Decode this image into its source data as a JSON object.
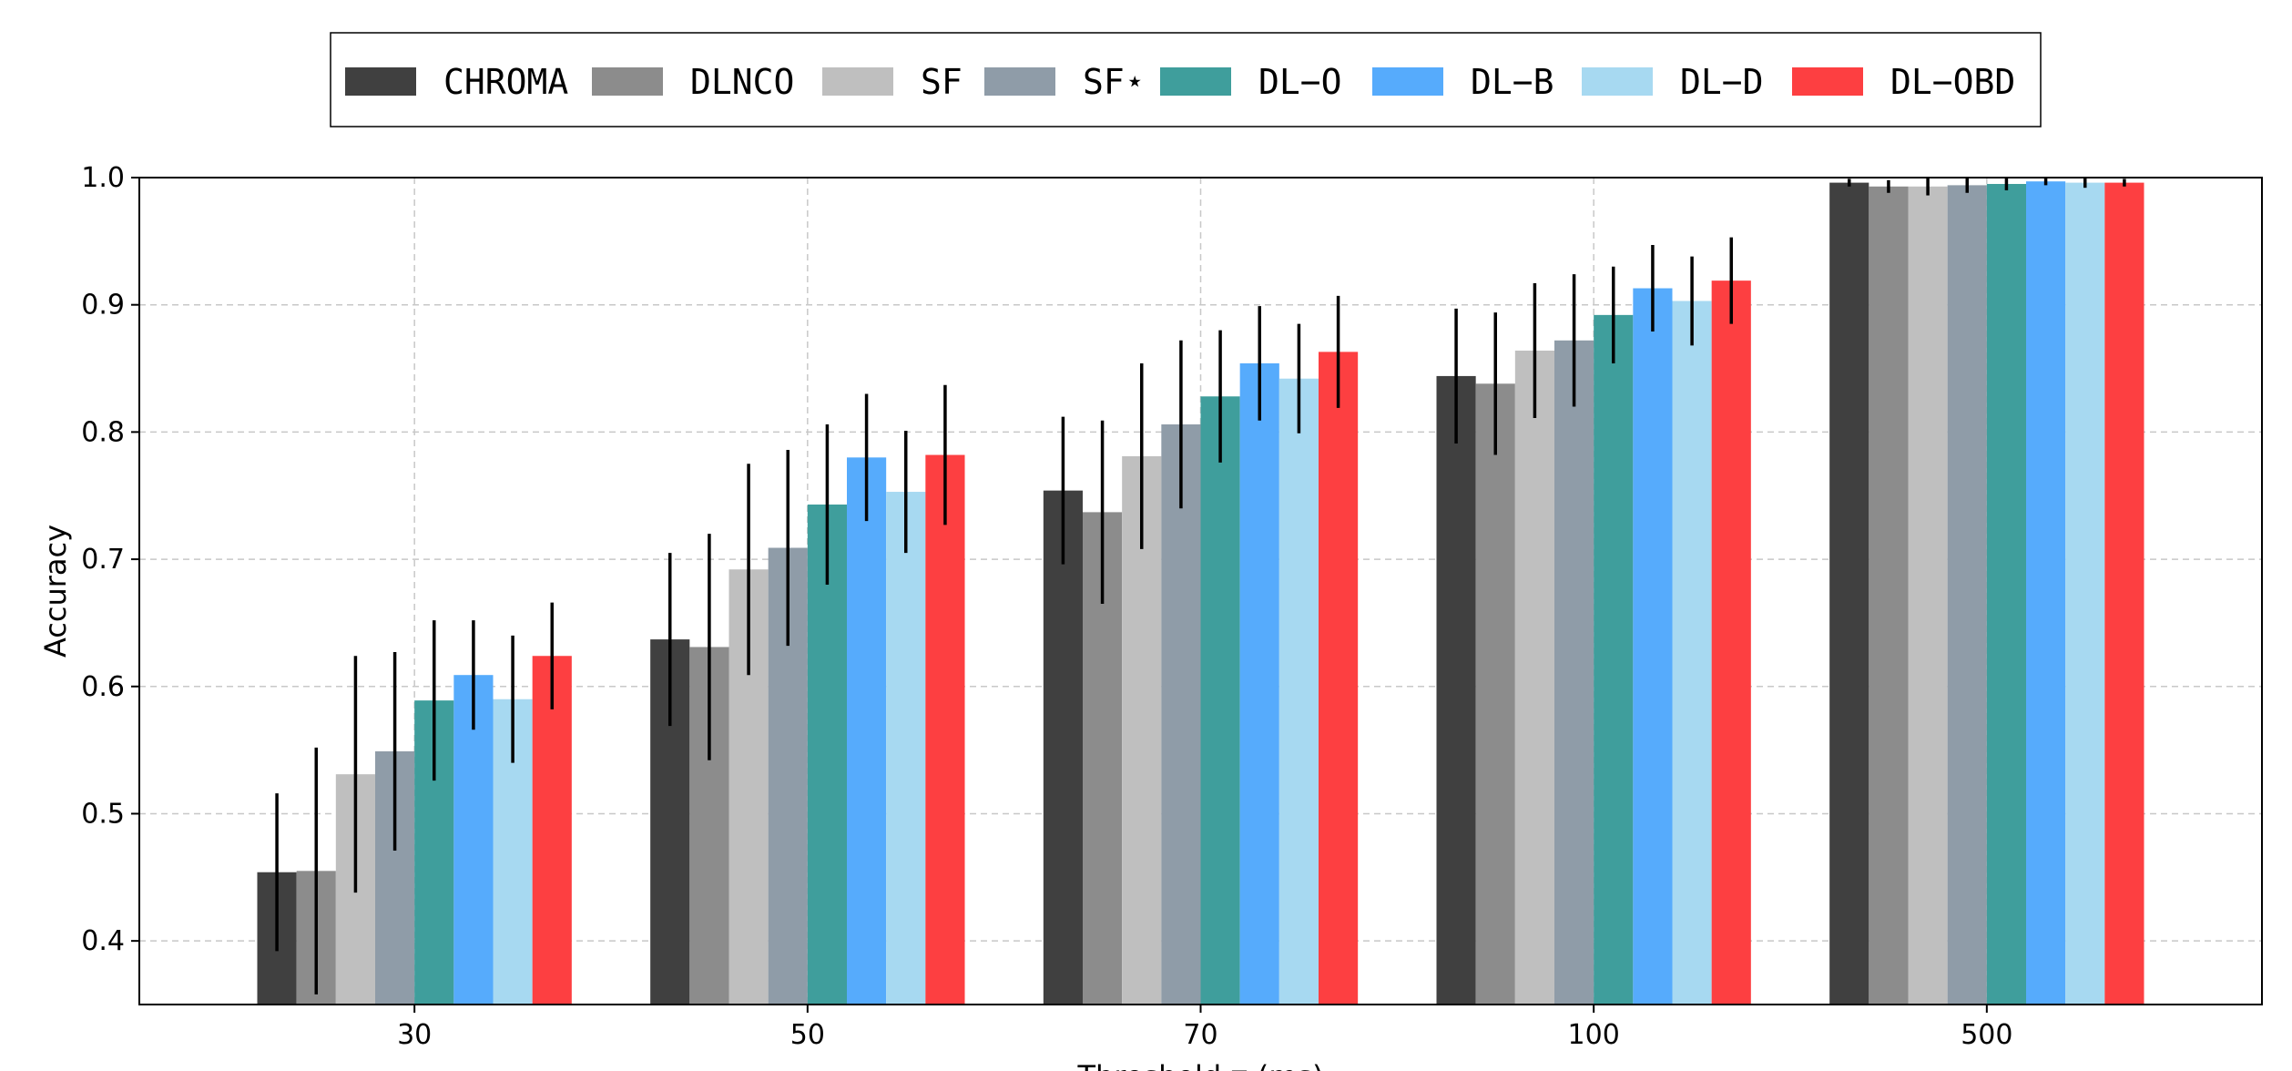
{
  "chart_data": {
    "type": "bar",
    "title": "",
    "xlabel": "Threshold τ (ms)",
    "ylabel": "Accuracy",
    "ylim": [
      0.35,
      1.0
    ],
    "yticks": [
      "0.4",
      "0.5",
      "0.6",
      "0.7",
      "0.8",
      "0.9",
      "1.0"
    ],
    "grid": true,
    "legend_position": "top-center",
    "categories": [
      "30",
      "50",
      "70",
      "100",
      "500"
    ],
    "series": [
      {
        "name": "CHROMA",
        "color": "#404040",
        "values": [
          0.454,
          0.637,
          0.754,
          0.844,
          0.996
        ],
        "errors": [
          0.062,
          0.068,
          0.058,
          0.053,
          0.003
        ]
      },
      {
        "name": "DLNCO",
        "color": "#8c8c8c",
        "values": [
          0.455,
          0.631,
          0.737,
          0.838,
          0.993
        ],
        "errors": [
          0.097,
          0.089,
          0.072,
          0.056,
          0.005
        ]
      },
      {
        "name": "SF",
        "color": "#bfbfbf",
        "values": [
          0.531,
          0.692,
          0.781,
          0.864,
          0.993
        ],
        "errors": [
          0.093,
          0.083,
          0.073,
          0.053,
          0.007
        ]
      },
      {
        "name": "SF⋆",
        "color": "#8f9ca8",
        "values": [
          0.549,
          0.709,
          0.806,
          0.872,
          0.994
        ],
        "errors": [
          0.078,
          0.077,
          0.066,
          0.052,
          0.006
        ]
      },
      {
        "name": "DL−O",
        "color": "#3f9e9c",
        "values": [
          0.589,
          0.743,
          0.828,
          0.892,
          0.995
        ],
        "errors": [
          0.063,
          0.063,
          0.052,
          0.038,
          0.005
        ]
      },
      {
        "name": "DL−B",
        "color": "#56abfc",
        "values": [
          0.609,
          0.78,
          0.854,
          0.913,
          0.997
        ],
        "errors": [
          0.043,
          0.05,
          0.045,
          0.034,
          0.003
        ]
      },
      {
        "name": "DL−D",
        "color": "#a7d9f1",
        "values": [
          0.59,
          0.753,
          0.842,
          0.903,
          0.996
        ],
        "errors": [
          0.05,
          0.048,
          0.043,
          0.035,
          0.004
        ]
      },
      {
        "name": "DL−OBD",
        "color": "#fd3f41",
        "values": [
          0.624,
          0.782,
          0.863,
          0.919,
          0.996
        ],
        "errors": [
          0.042,
          0.055,
          0.044,
          0.034,
          0.003
        ]
      }
    ]
  }
}
